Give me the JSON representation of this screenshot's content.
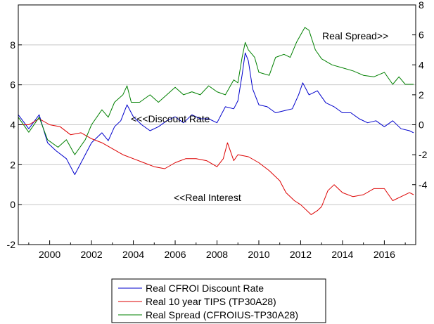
{
  "chart_data": {
    "type": "line",
    "title": "",
    "xlabel": "",
    "ylabel": "",
    "xlim": [
      1998.5,
      2017.5
    ],
    "left_axis": {
      "ylim": [
        -2,
        10
      ],
      "ticks": [
        "-2",
        "0",
        "2",
        "4",
        "6",
        "8"
      ]
    },
    "right_axis": {
      "ylim": [
        -8,
        8
      ],
      "ticks": [
        "-4",
        "-2",
        "0",
        "2",
        "4",
        "6",
        "8"
      ]
    },
    "x_ticks": [
      "2000",
      "2002",
      "2004",
      "2006",
      "2008",
      "2010",
      "2012",
      "2014",
      "2016"
    ],
    "grid": "horizontal",
    "legend_position": "bottom-center",
    "annotations": [
      "<<<Discount Rate",
      "<<Real Interest",
      "Real Spread>>"
    ],
    "series": [
      {
        "name": "Real CFROI Discount Rate",
        "color": "#0000cc",
        "axis": "left",
        "x": [
          1998.5,
          1999.0,
          1999.5,
          1999.9,
          2000.3,
          2000.8,
          2001.2,
          2001.7,
          2002.0,
          2002.5,
          2002.8,
          2003.1,
          2003.4,
          2003.7,
          2004.0,
          2004.4,
          2004.8,
          2005.2,
          2005.6,
          2006.0,
          2006.4,
          2006.8,
          2007.2,
          2007.6,
          2008.0,
          2008.4,
          2008.8,
          2009.0,
          2009.2,
          2009.35,
          2009.5,
          2009.7,
          2010.0,
          2010.4,
          2010.8,
          2011.2,
          2011.6,
          2011.9,
          2012.1,
          2012.4,
          2012.8,
          2013.2,
          2013.6,
          2014.0,
          2014.4,
          2014.8,
          2015.2,
          2015.6,
          2016.0,
          2016.4,
          2016.8,
          2017.2,
          2017.4
        ],
        "y": [
          4.5,
          3.8,
          4.5,
          3.1,
          2.7,
          2.3,
          1.5,
          2.5,
          3.1,
          3.6,
          3.2,
          3.9,
          4.2,
          5.0,
          4.4,
          4.0,
          3.7,
          3.9,
          4.2,
          4.4,
          4.1,
          4.5,
          4.3,
          4.3,
          4.1,
          4.9,
          4.8,
          5.2,
          6.5,
          7.6,
          7.2,
          5.8,
          5.0,
          4.9,
          4.6,
          4.7,
          4.8,
          5.5,
          6.1,
          5.5,
          5.7,
          5.1,
          4.9,
          4.6,
          4.6,
          4.3,
          4.1,
          4.2,
          3.9,
          4.2,
          3.8,
          3.7,
          3.6
        ]
      },
      {
        "name": "Real 10 year TIPS (TP30A28)",
        "color": "#dd0000",
        "axis": "left",
        "x": [
          1998.5,
          1999.0,
          1999.5,
          2000.0,
          2000.5,
          2001.0,
          2001.5,
          2002.0,
          2002.5,
          2003.0,
          2003.5,
          2004.0,
          2004.5,
          2005.0,
          2005.5,
          2006.0,
          2006.5,
          2007.0,
          2007.5,
          2008.0,
          2008.3,
          2008.5,
          2008.8,
          2009.0,
          2009.5,
          2010.0,
          2010.5,
          2011.0,
          2011.3,
          2011.7,
          2012.0,
          2012.5,
          2012.8,
          2013.0,
          2013.3,
          2013.6,
          2014.0,
          2014.5,
          2015.0,
          2015.5,
          2016.0,
          2016.4,
          2016.8,
          2017.2,
          2017.4
        ],
        "y": [
          4.0,
          4.0,
          4.3,
          4.0,
          3.9,
          3.5,
          3.6,
          3.3,
          3.1,
          2.8,
          2.5,
          2.3,
          2.1,
          1.9,
          1.8,
          2.1,
          2.3,
          2.3,
          2.2,
          1.9,
          2.3,
          3.1,
          2.2,
          2.5,
          2.4,
          2.1,
          1.7,
          1.2,
          0.6,
          0.2,
          0.0,
          -0.5,
          -0.3,
          -0.1,
          0.7,
          1.0,
          0.6,
          0.4,
          0.5,
          0.8,
          0.8,
          0.2,
          0.4,
          0.6,
          0.5
        ]
      },
      {
        "name": "Real Spread (CFROIUS-TP30A28)",
        "color": "#008000",
        "axis": "right",
        "x": [
          1998.5,
          1999.0,
          1999.5,
          1999.9,
          2000.4,
          2000.8,
          2001.2,
          2001.7,
          2002.0,
          2002.5,
          2002.8,
          2003.1,
          2003.5,
          2003.7,
          2003.9,
          2004.3,
          2004.8,
          2005.2,
          2005.6,
          2006.0,
          2006.4,
          2006.8,
          2007.2,
          2007.6,
          2008.0,
          2008.4,
          2008.8,
          2009.0,
          2009.2,
          2009.35,
          2009.5,
          2009.8,
          2010.0,
          2010.5,
          2010.8,
          2011.2,
          2011.5,
          2011.8,
          2012.0,
          2012.2,
          2012.4,
          2012.7,
          2013.0,
          2013.5,
          2014.0,
          2014.5,
          2015.0,
          2015.5,
          2016.0,
          2016.4,
          2016.7,
          2017.0,
          2017.4
        ],
        "y": [
          0.5,
          -0.5,
          0.5,
          -1.0,
          -1.5,
          -1.0,
          -2.0,
          -1.0,
          0.0,
          1.0,
          0.5,
          1.5,
          2.0,
          2.6,
          1.5,
          1.5,
          2.0,
          1.5,
          2.0,
          2.5,
          2.0,
          2.2,
          2.0,
          2.6,
          2.2,
          2.0,
          3.0,
          2.8,
          4.5,
          5.5,
          5.0,
          4.5,
          3.5,
          3.3,
          4.5,
          4.7,
          4.5,
          5.5,
          6.0,
          6.5,
          6.3,
          5.0,
          4.4,
          4.0,
          3.8,
          3.6,
          3.3,
          3.2,
          3.5,
          2.7,
          3.2,
          2.7,
          2.7
        ]
      }
    ]
  }
}
